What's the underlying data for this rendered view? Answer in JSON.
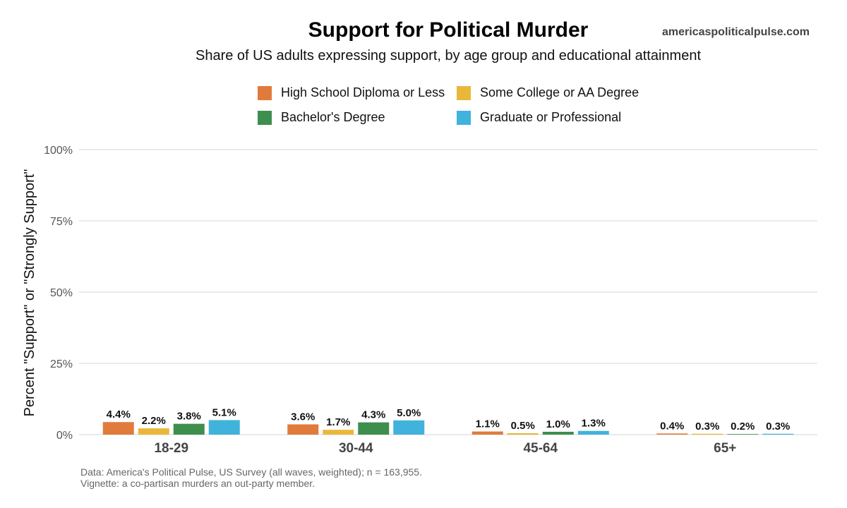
{
  "title": "Support for Political Murder",
  "brand": "americaspoliticalpulse.com",
  "subtitle": "Share of US adults expressing support, by age group and educational attainment",
  "caption": {
    "line1": "Data: America's Political Pulse, US Survey (all waves, weighted); n = 163,955.",
    "line2": "Vignette: a co-partisan murders an out-party member."
  },
  "chart_data": {
    "type": "bar",
    "title": "Support for Political Murder",
    "subtitle": "Share of US adults expressing support, by age group and educational attainment",
    "xlabel": "",
    "ylabel": "Percent \"Support\" or \"Strongly Support\"",
    "ylim": [
      0,
      100
    ],
    "yticks": [
      "0%",
      "25%",
      "50%",
      "75%",
      "100%"
    ],
    "ytick_values": [
      0,
      25,
      50,
      75,
      100
    ],
    "grid": true,
    "legend_position": "top",
    "categories": [
      "18-29",
      "30-44",
      "45-64",
      "65+"
    ],
    "series": [
      {
        "name": "High School Diploma or Less",
        "color": "#E07B3C",
        "values": [
          4.4,
          3.6,
          1.1,
          0.4
        ],
        "labels": [
          "4.4%",
          "3.6%",
          "1.1%",
          "0.4%"
        ]
      },
      {
        "name": "Some College or AA Degree",
        "color": "#E9B83A",
        "values": [
          2.2,
          1.7,
          0.5,
          0.3
        ],
        "labels": [
          "2.2%",
          "1.7%",
          "0.5%",
          "0.3%"
        ]
      },
      {
        "name": "Bachelor's Degree",
        "color": "#3E8E4E",
        "values": [
          3.8,
          4.3,
          1.0,
          0.2
        ],
        "labels": [
          "3.8%",
          "4.3%",
          "1.0%",
          "0.2%"
        ]
      },
      {
        "name": "Graduate or Professional",
        "color": "#40B3DC",
        "values": [
          5.1,
          5.0,
          1.3,
          0.3
        ],
        "labels": [
          "5.1%",
          "5.0%",
          "1.3%",
          "0.3%"
        ]
      }
    ]
  }
}
